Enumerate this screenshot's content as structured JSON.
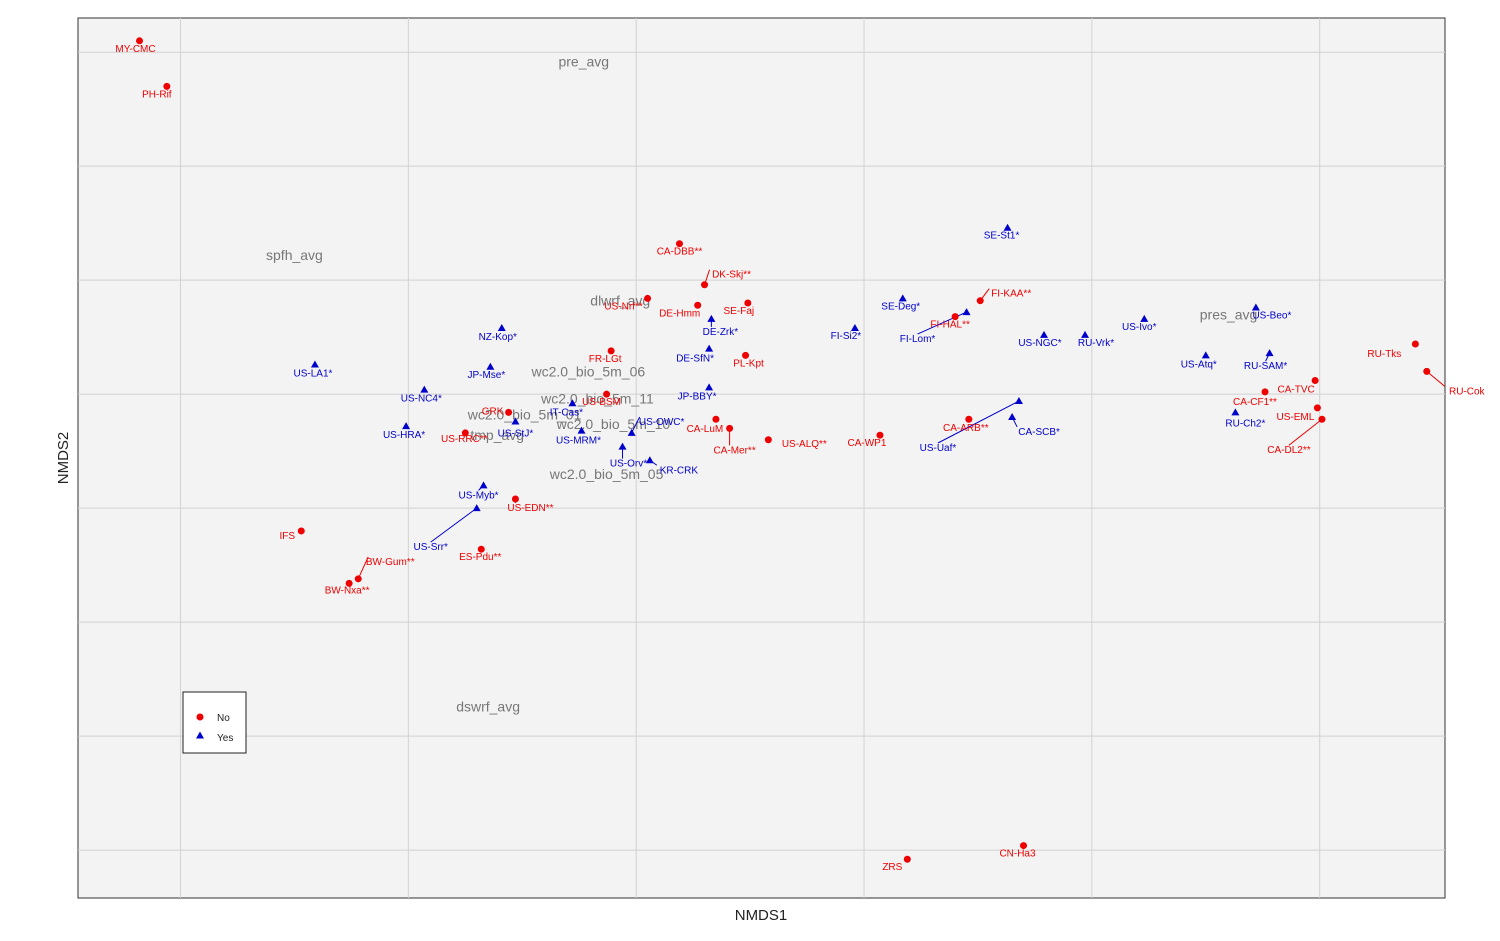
{
  "chart_data": {
    "type": "scatter",
    "xlabel": "NMDS1",
    "ylabel": "NMDS2",
    "xlim": [
      -2.45,
      3.55
    ],
    "ylim": [
      -2.21,
      1.65
    ],
    "grid": true,
    "legend_placement": "bottom-left",
    "legend": [
      {
        "key": "No",
        "label": "No",
        "shape": "circle",
        "color": "#ee0000"
      },
      {
        "key": "Yes",
        "label": "Yes",
        "shape": "triangle",
        "color": "#0000cc"
      }
    ],
    "points": [
      {
        "label": "MY-CMC",
        "x": -2.18,
        "y": 1.55,
        "group": "No"
      },
      {
        "label": "PH-Rif",
        "x": -2.06,
        "y": 1.35,
        "group": "No"
      },
      {
        "label": "CA-DBB**",
        "x": 0.19,
        "y": 0.66,
        "group": "No"
      },
      {
        "label": "DK-Skj**",
        "x": 0.3,
        "y": 0.48,
        "group": "No"
      },
      {
        "label": "US-Nrf**",
        "x": 0.05,
        "y": 0.42,
        "group": "No"
      },
      {
        "label": "DE-Hmm",
        "x": 0.27,
        "y": 0.39,
        "group": "No"
      },
      {
        "label": "SE-Faj",
        "x": 0.49,
        "y": 0.4,
        "group": "No"
      },
      {
        "label": "FR-LGt",
        "x": -0.11,
        "y": 0.19,
        "group": "No"
      },
      {
        "label": "PL-Kpt",
        "x": 0.48,
        "y": 0.17,
        "group": "No"
      },
      {
        "label": "US-BSM",
        "x": -0.13,
        "y": 0.0,
        "group": "No"
      },
      {
        "label": "CA-LuM",
        "x": 0.35,
        "y": -0.11,
        "group": "No"
      },
      {
        "label": "CA-Mer**",
        "x": 0.41,
        "y": -0.15,
        "group": "No"
      },
      {
        "label": "US-ALQ**",
        "x": 0.58,
        "y": -0.2,
        "group": "No"
      },
      {
        "label": "CA-WP1",
        "x": 1.07,
        "y": -0.18,
        "group": "No"
      },
      {
        "label": "US-RRC**",
        "x": -0.75,
        "y": -0.17,
        "group": "No"
      },
      {
        "label": "GRK",
        "x": -0.56,
        "y": -0.08,
        "group": "No"
      },
      {
        "label": "US-EDN**",
        "x": -0.53,
        "y": -0.46,
        "group": "No"
      },
      {
        "label": "ES-Pdu**",
        "x": -0.68,
        "y": -0.68,
        "group": "No"
      },
      {
        "label": "IFS",
        "x": -1.47,
        "y": -0.6,
        "group": "No"
      },
      {
        "label": "BW-Gum**",
        "x": -1.22,
        "y": -0.81,
        "group": "No"
      },
      {
        "label": "BW-Nxa**",
        "x": -1.26,
        "y": -0.83,
        "group": "No"
      },
      {
        "label": "FI-KAA**",
        "x": 1.51,
        "y": 0.41,
        "group": "No"
      },
      {
        "label": "FI-HAL**",
        "x": 1.4,
        "y": 0.34,
        "group": "No"
      },
      {
        "label": "CA-ARB**",
        "x": 1.46,
        "y": -0.11,
        "group": "No"
      },
      {
        "label": "CA-TVC",
        "x": 2.98,
        "y": 0.06,
        "group": "No"
      },
      {
        "label": "CA-CF1**",
        "x": 2.76,
        "y": 0.01,
        "group": "No"
      },
      {
        "label": "US-EML",
        "x": 2.99,
        "y": -0.06,
        "group": "No"
      },
      {
        "label": "CA-DL2**",
        "x": 3.01,
        "y": -0.11,
        "group": "No"
      },
      {
        "label": "RU-Tks",
        "x": 3.42,
        "y": 0.22,
        "group": "No"
      },
      {
        "label": "RU-Cok",
        "x": 3.47,
        "y": 0.1,
        "group": "No"
      },
      {
        "label": "ZRS",
        "x": 1.19,
        "y": -2.04,
        "group": "No"
      },
      {
        "label": "CN-Ha3",
        "x": 1.7,
        "y": -1.98,
        "group": "No"
      },
      {
        "label": "SE-St1*",
        "x": 1.63,
        "y": 0.73,
        "group": "Yes"
      },
      {
        "label": "SE-Deg*",
        "x": 1.17,
        "y": 0.42,
        "group": "Yes"
      },
      {
        "label": "FI-Si2*",
        "x": 0.96,
        "y": 0.29,
        "group": "Yes"
      },
      {
        "label": "FI-Lom*",
        "x": 1.45,
        "y": 0.36,
        "group": "Yes"
      },
      {
        "label": "US-NGC*",
        "x": 1.79,
        "y": 0.26,
        "group": "Yes"
      },
      {
        "label": "RU-Vrk*",
        "x": 1.97,
        "y": 0.26,
        "group": "Yes"
      },
      {
        "label": "US-Ivo*",
        "x": 2.23,
        "y": 0.33,
        "group": "Yes"
      },
      {
        "label": "US-Beo*",
        "x": 2.72,
        "y": 0.38,
        "group": "Yes"
      },
      {
        "label": "US-Atq*",
        "x": 2.5,
        "y": 0.17,
        "group": "Yes"
      },
      {
        "label": "RU-SAM*",
        "x": 2.78,
        "y": 0.18,
        "group": "Yes"
      },
      {
        "label": "RU-Ch2*",
        "x": 2.63,
        "y": -0.08,
        "group": "Yes"
      },
      {
        "label": "DE-Zrk*",
        "x": 0.33,
        "y": 0.33,
        "group": "Yes"
      },
      {
        "label": "DE-SfN*",
        "x": 0.32,
        "y": 0.2,
        "group": "Yes"
      },
      {
        "label": "JP-BBY*",
        "x": 0.32,
        "y": 0.03,
        "group": "Yes"
      },
      {
        "label": "NZ-Kop*",
        "x": -0.59,
        "y": 0.29,
        "group": "Yes"
      },
      {
        "label": "JP-Mse*",
        "x": -0.64,
        "y": 0.12,
        "group": "Yes"
      },
      {
        "label": "US-LA1*",
        "x": -1.41,
        "y": 0.13,
        "group": "Yes"
      },
      {
        "label": "US-NC4*",
        "x": -0.93,
        "y": 0.02,
        "group": "Yes"
      },
      {
        "label": "US-HRA*",
        "x": -1.01,
        "y": -0.14,
        "group": "Yes"
      },
      {
        "label": "IT-Cas*",
        "x": -0.28,
        "y": -0.04,
        "group": "Yes"
      },
      {
        "label": "US-StJ*",
        "x": -0.53,
        "y": -0.12,
        "group": "Yes"
      },
      {
        "label": "US-MRM*",
        "x": -0.24,
        "y": -0.16,
        "group": "Yes"
      },
      {
        "label": "US-OWC*",
        "x": -0.02,
        "y": -0.17,
        "group": "Yes"
      },
      {
        "label": "US-Orv*",
        "x": -0.06,
        "y": -0.23,
        "group": "Yes"
      },
      {
        "label": "KR-CRK",
        "x": 0.06,
        "y": -0.29,
        "group": "Yes"
      },
      {
        "label": "US-Myb*",
        "x": -0.67,
        "y": -0.4,
        "group": "Yes"
      },
      {
        "label": "US-Srr*",
        "x": -0.7,
        "y": -0.5,
        "group": "Yes"
      },
      {
        "label": "US-Uaf*",
        "x": 1.68,
        "y": -0.03,
        "group": "Yes"
      },
      {
        "label": "CA-SCB*",
        "x": 1.65,
        "y": -0.1,
        "group": "Yes"
      }
    ],
    "vectors": [
      {
        "label": "pre_avg",
        "x": -0.23,
        "y": 1.46
      },
      {
        "label": "spfh_avg",
        "x": -1.5,
        "y": 0.61
      },
      {
        "label": "dlwrf_avg",
        "x": -0.07,
        "y": 0.41
      },
      {
        "label": "wc2.0_bio_5m_06",
        "x": -0.21,
        "y": 0.1
      },
      {
        "label": "wc2.0_bio_5m_11",
        "x": -0.17,
        "y": -0.02
      },
      {
        "label": "wc2.0_bio_5m_01",
        "x": -0.49,
        "y": -0.09
      },
      {
        "label": "wc2.0_bio_5m_10",
        "x": -0.1,
        "y": -0.13
      },
      {
        "label": "tmp_avg",
        "x": -0.61,
        "y": -0.18
      },
      {
        "label": "wc2.0_bio_5m_05",
        "x": -0.13,
        "y": -0.35
      },
      {
        "label": "dswrf_avg",
        "x": -0.65,
        "y": -1.37
      },
      {
        "label": "pres_avg",
        "x": 2.6,
        "y": 0.35
      }
    ]
  }
}
